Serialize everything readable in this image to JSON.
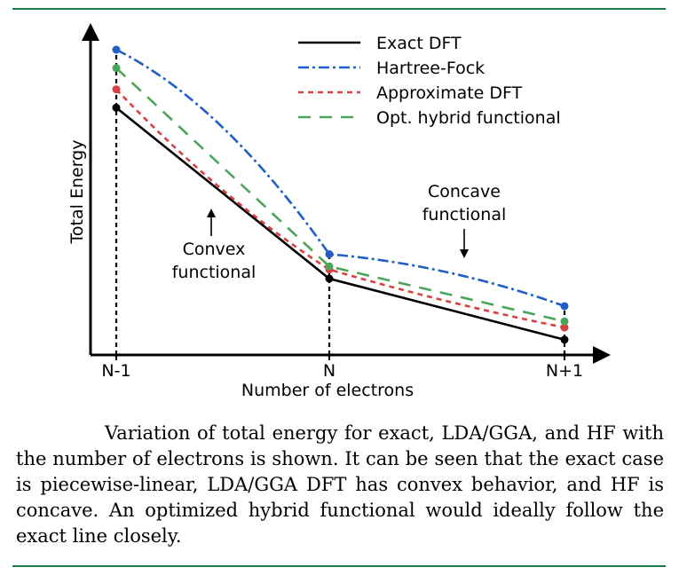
{
  "chart_data": {
    "type": "line",
    "xlabel": "Number of electrons",
    "ylabel": "Total Energy",
    "x_ticks": [
      "N-1",
      "N",
      "N+1"
    ],
    "x": [
      0,
      1,
      2
    ],
    "ylim": [
      0,
      1
    ],
    "legend": {
      "position": "top-right"
    },
    "series": [
      {
        "name": "Exact DFT",
        "color": "#000000",
        "style": "solid",
        "values": [
          0.81,
          0.25,
          0.05
        ]
      },
      {
        "name": "Hartree-Fock",
        "color": "#1f5fc6",
        "style": "dashdot",
        "values": [
          1.0,
          0.33,
          0.16
        ]
      },
      {
        "name": "Approximate DFT",
        "color": "#d94040",
        "style": "dashed",
        "values": [
          0.87,
          0.28,
          0.09
        ]
      },
      {
        "name": "Opt. hybrid functional",
        "color": "#4aa55a",
        "style": "longdash",
        "values": [
          0.94,
          0.29,
          0.11
        ]
      }
    ],
    "annotations": [
      {
        "text_lines": [
          "Convex",
          "functional"
        ],
        "target": "Approximate DFT"
      },
      {
        "text_lines": [
          "Concave",
          "functional"
        ],
        "target": "Hartree-Fock"
      }
    ]
  },
  "caption": "Variation of total energy for exact, LDA/GGA, and HF with the number of electrons is shown. It can be seen that the exact case is piecewise-linear, LDA/GGA DFT has convex behavior, and HF is concave. An optimized hybrid functional would ideally follow the exact line closely."
}
